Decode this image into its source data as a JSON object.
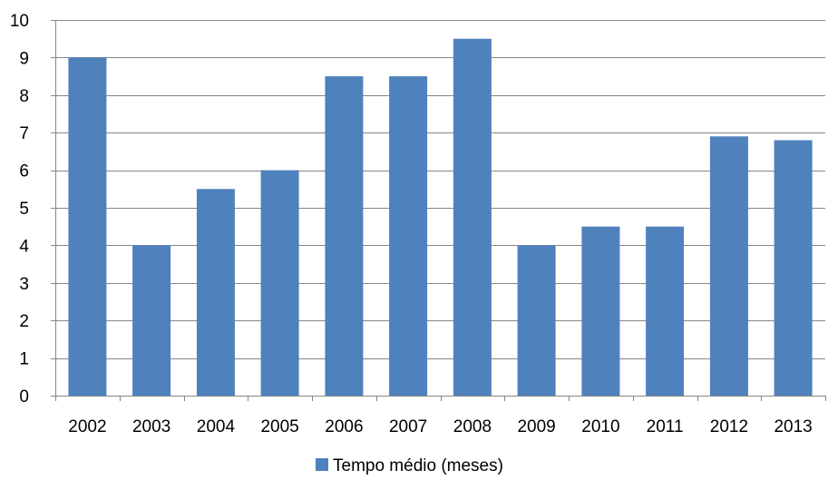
{
  "chart_data": {
    "type": "bar",
    "categories": [
      "2002",
      "2003",
      "2004",
      "2005",
      "2006",
      "2007",
      "2008",
      "2009",
      "2010",
      "2011",
      "2012",
      "2013"
    ],
    "series": [
      {
        "name": "Tempo médio (meses)",
        "values": [
          9,
          4,
          5.5,
          6,
          8.5,
          8.5,
          9.5,
          4,
          4.5,
          4.5,
          6.9,
          6.8
        ],
        "color": "#4f81bd"
      }
    ],
    "yticks": [
      "0",
      "1",
      "2",
      "3",
      "4",
      "5",
      "6",
      "7",
      "8",
      "9",
      "10"
    ],
    "ylim": [
      0,
      10
    ],
    "grid": true,
    "legend_position": "bottom",
    "gridline_color": "#868686",
    "axis_color": "#868686"
  }
}
